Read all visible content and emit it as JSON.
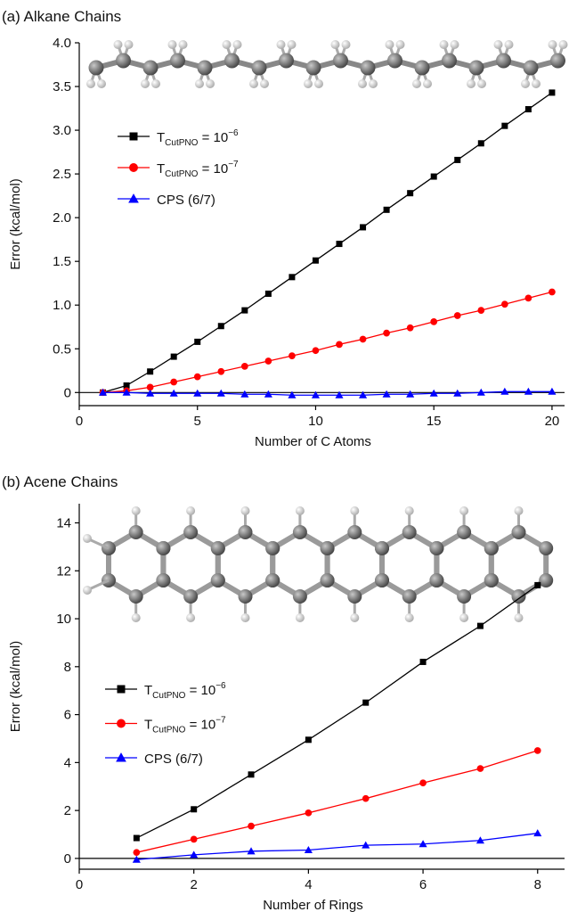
{
  "chart_data": [
    {
      "type": "line",
      "title": "(a) Alkane Chains",
      "x_label": "Number of C Atoms",
      "y_label": "Error (kcal/mol)",
      "xlim": [
        0,
        20.53
      ],
      "ylim": [
        -0.15,
        4.0
      ],
      "xticks": [
        0,
        5,
        10,
        15,
        20
      ],
      "yticks": [
        0,
        0.5,
        {
          "value": 1,
          "label": "1.0"
        },
        1.5,
        {
          "value": 2,
          "label": "2.0"
        },
        2.5,
        {
          "value": 3,
          "label": "3.0"
        },
        3.5,
        {
          "value": 4,
          "label": "4.0"
        }
      ],
      "x": [
        1,
        2,
        3,
        4,
        5,
        6,
        7,
        8,
        9,
        10,
        11,
        12,
        13,
        14,
        15,
        16,
        17,
        18,
        19,
        20
      ],
      "series": [
        {
          "name": {
            "base": "T",
            "sub": "CutPNO",
            "rest": " = 10",
            "sup": "−6"
          },
          "color": "#000000",
          "marker": "square",
          "values": [
            0,
            0.08,
            0.24,
            0.41,
            0.58,
            0.76,
            0.94,
            1.13,
            1.32,
            1.51,
            1.7,
            1.89,
            2.09,
            2.28,
            2.47,
            2.66,
            2.85,
            3.05,
            3.24,
            3.43
          ]
        },
        {
          "name": {
            "base": "T",
            "sub": "CutPNO",
            "rest": " = 10",
            "sup": "−7"
          },
          "color": "#ff0000",
          "marker": "circle",
          "values": [
            0,
            0.02,
            0.06,
            0.12,
            0.18,
            0.24,
            0.3,
            0.36,
            0.42,
            0.48,
            0.55,
            0.61,
            0.68,
            0.74,
            0.81,
            0.88,
            0.94,
            1.01,
            1.08,
            1.15
          ]
        },
        {
          "name": {
            "base": "CPS (6/7)"
          },
          "color": "#0000ff",
          "marker": "triangle",
          "values": [
            0,
            0,
            -0.01,
            -0.01,
            -0.01,
            -0.01,
            -0.02,
            -0.02,
            -0.03,
            -0.03,
            -0.03,
            -0.03,
            -0.02,
            -0.02,
            -0.01,
            -0.01,
            0,
            0.01,
            0.01,
            0.01
          ]
        }
      ]
    },
    {
      "type": "line",
      "title": "(b) Acene Chains",
      "x_label": "Number of Rings",
      "y_label": "Error (kcal/mol)",
      "xlim": [
        0,
        8.47
      ],
      "ylim": [
        -0.45,
        14.8
      ],
      "xticks": [
        0,
        2,
        4,
        6,
        8
      ],
      "yticks": [
        0,
        2,
        4,
        6,
        8,
        10,
        12,
        14
      ],
      "x": [
        1,
        2,
        3,
        4,
        5,
        6,
        7,
        8
      ],
      "series": [
        {
          "name": {
            "base": "T",
            "sub": "CutPNO",
            "rest": " = 10",
            "sup": "−6"
          },
          "color": "#000000",
          "marker": "square",
          "values": [
            0.85,
            2.05,
            3.5,
            4.95,
            6.5,
            8.2,
            9.7,
            11.4
          ]
        },
        {
          "name": {
            "base": "T",
            "sub": "CutPNO",
            "rest": " = 10",
            "sup": "−7"
          },
          "color": "#ff0000",
          "marker": "circle",
          "values": [
            0.25,
            0.8,
            1.35,
            1.9,
            2.5,
            3.15,
            3.75,
            4.5
          ]
        },
        {
          "name": {
            "base": "CPS (6/7)"
          },
          "color": "#0000ff",
          "marker": "triangle",
          "values": [
            -0.05,
            0.15,
            0.3,
            0.35,
            0.55,
            0.6,
            0.75,
            1.05
          ]
        }
      ]
    }
  ]
}
